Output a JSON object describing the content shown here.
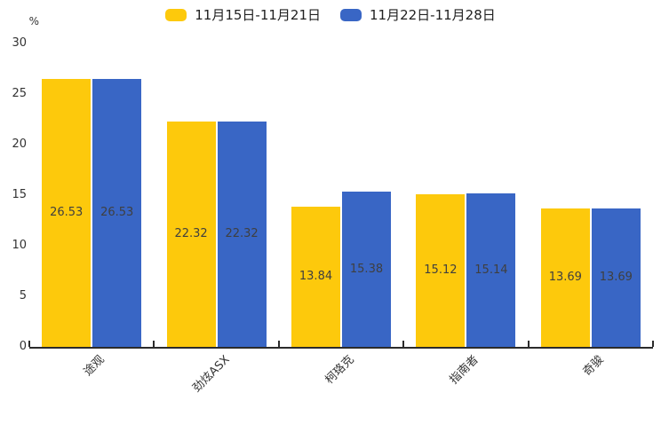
{
  "legend": {
    "items": [
      {
        "label": "11月15日-11月21日",
        "color": "#FDC90C"
      },
      {
        "label": "11月22日-11月28日",
        "color": "#3966C5"
      }
    ]
  },
  "colors": {
    "series1": "#FDC90C",
    "series2": "#3966C5",
    "bar_value_text": "#3f3f3f",
    "axis": "#2b2b2b",
    "tick_text": "#333333"
  },
  "chart_data": {
    "type": "bar",
    "title": "",
    "unit_label": "%",
    "categories": [
      "途观",
      "劲炫ASX",
      "柯珞克",
      "指南者",
      "奇骏"
    ],
    "series": [
      {
        "name": "11月15日-11月21日",
        "color": "#FDC90C",
        "values": [
          26.53,
          22.32,
          13.84,
          15.12,
          13.69
        ]
      },
      {
        "name": "11月22日-11月28日",
        "color": "#3966C5",
        "values": [
          26.53,
          22.32,
          15.38,
          15.14,
          13.69
        ]
      }
    ],
    "ylim": [
      0,
      30
    ],
    "ytick_step": 5,
    "yticks": [
      0,
      5,
      10,
      15,
      20,
      25,
      30
    ],
    "value_labels": true,
    "value_label_decimals": 2,
    "legend_position": "top-center",
    "grid": false,
    "x_label_rotation_deg": 45
  }
}
